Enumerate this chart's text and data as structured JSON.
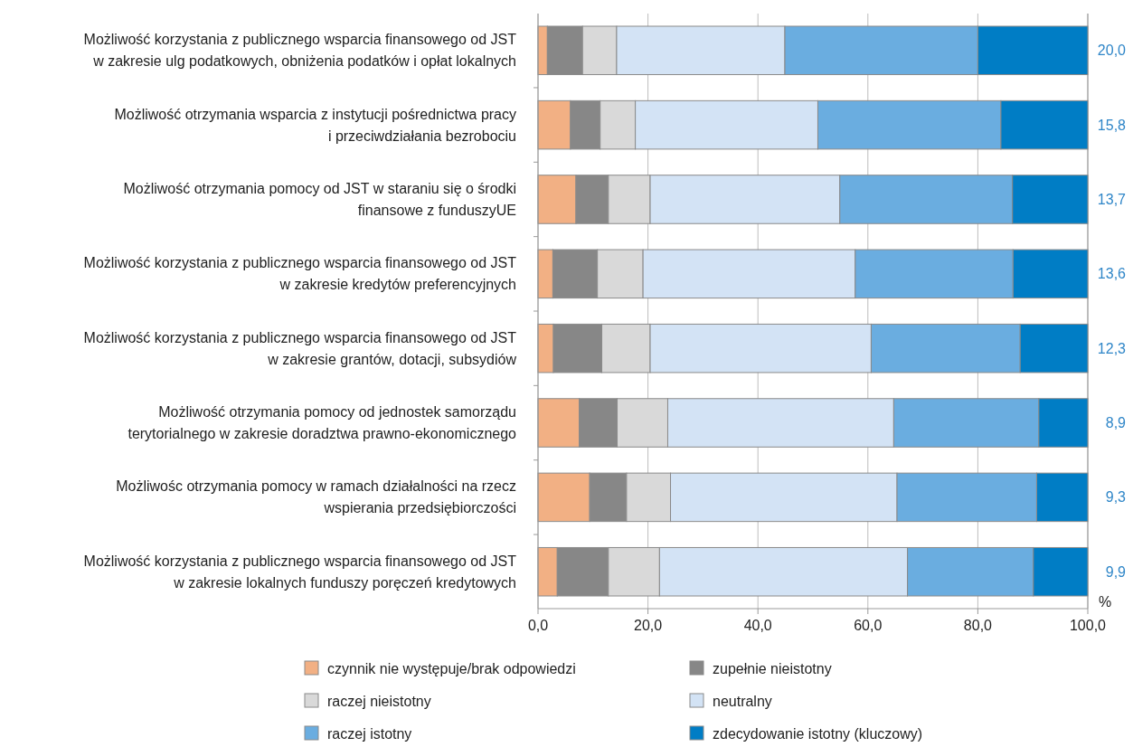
{
  "chart_data": {
    "type": "bar",
    "orientation": "horizontal",
    "stacked": true,
    "grid": "x",
    "legend": "bottom",
    "categories": [
      "Możliwość korzystania z publicznego wsparcia finansowego od JST\nw zakresie ulg podatkowych, obniżenia podatków i opłat lokalnych",
      "Możliwość otrzymania wsparcia z instytucji pośrednictwa pracy\ni przeciwdziałania bezrobociu",
      "Możliwość otrzymania pomocy od JST  w staraniu się o środki\nfinansowe z funduszyUE",
      "Możliwość korzystania z publicznego wsparcia finansowego od JST\nw zakresie kredytów preferencyjnych",
      "Możliwość korzystania z publicznego wsparcia finansowego od JST\nw zakresie grantów, dotacji, subsydiów",
      "Możliwość otrzymania pomocy od jednostek samorządu\nterytorialnego w zakresie doradztwa prawno-ekonomicznego",
      "Możliwośc otrzymania pomocy w ramach działalności na rzecz\nwspierania przedsiębiorczości",
      "Możliwość korzystania z publicznego wsparcia finansowego od JST\nw zakresie lokalnych funduszy poręczeń kredytowych"
    ],
    "series": [
      {
        "name": "czynnik nie występuje/brak odpowiedzi",
        "color": "#f2b084",
        "values": [
          1.7,
          5.9,
          6.9,
          2.7,
          2.8,
          7.5,
          9.4,
          3.5
        ]
      },
      {
        "name": "zupełnie nieistotny",
        "color": "#878787",
        "values": [
          6.4,
          5.4,
          5.9,
          8.1,
          8.8,
          6.9,
          6.7,
          9.3
        ]
      },
      {
        "name": "raczej nieistotny",
        "color": "#d9d9d9",
        "values": [
          6.2,
          6.4,
          7.6,
          8.3,
          8.8,
          9.2,
          8.0,
          9.3
        ]
      },
      {
        "name": "neutralny",
        "color": "#d3e3f5",
        "values": [
          30.6,
          33.2,
          34.5,
          38.6,
          40.2,
          41.1,
          41.2,
          45.1
        ]
      },
      {
        "name": "raczej istotny",
        "color": "#6aade0",
        "values": [
          35.1,
          33.3,
          31.4,
          28.7,
          27.1,
          26.4,
          25.4,
          22.9
        ]
      },
      {
        "name": "zdecydowanie istotny (kluczowy)",
        "color": "#007dc5",
        "values": [
          20.0,
          15.8,
          13.7,
          13.6,
          12.3,
          8.9,
          9.3,
          9.9
        ],
        "value_labels": [
          "20,0",
          "15,8",
          "13,7",
          "13,6",
          "12,3",
          "8,9",
          "9,3",
          "9,9"
        ]
      }
    ],
    "xlim": [
      0,
      100
    ],
    "xticks": [
      {
        "value": 0,
        "label": "0,0"
      },
      {
        "value": 20,
        "label": "20,0"
      },
      {
        "value": 40,
        "label": "40,0"
      },
      {
        "value": 60,
        "label": "60,0"
      },
      {
        "value": 80,
        "label": "80,0"
      },
      {
        "value": 100,
        "label": "100,0"
      }
    ],
    "annotations": [
      "%"
    ]
  }
}
